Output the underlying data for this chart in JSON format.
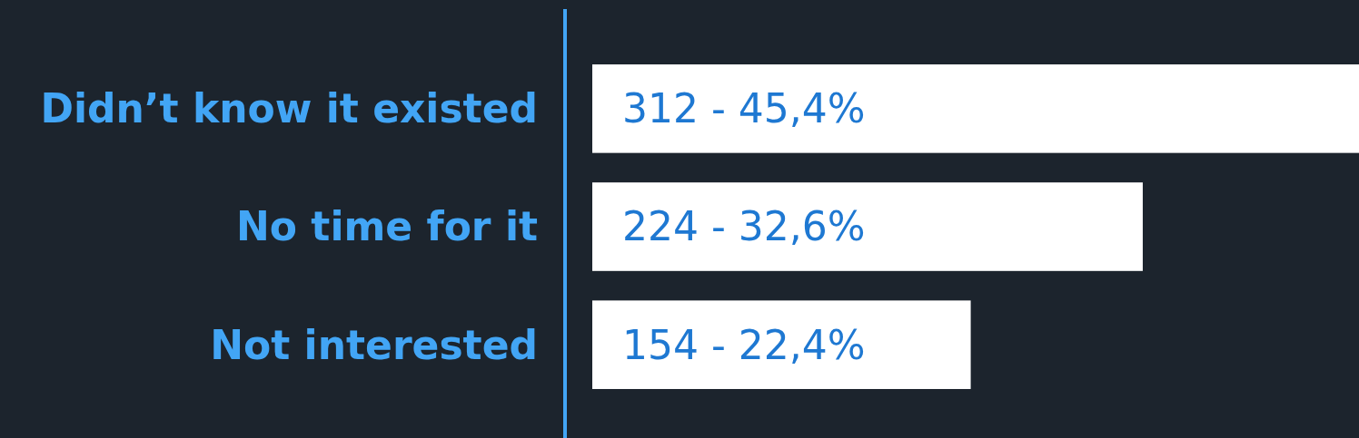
{
  "chart_data": {
    "type": "bar",
    "orientation": "horizontal",
    "categories": [
      "Didn’t know it existed",
      "No time for it",
      "Not interested"
    ],
    "values": [
      312,
      224,
      154
    ],
    "color": "#ffffff",
    "value_labels": [
      "312 - 45,4%",
      "224 - 32,6%",
      "154 - 22,4%"
    ]
  }
}
